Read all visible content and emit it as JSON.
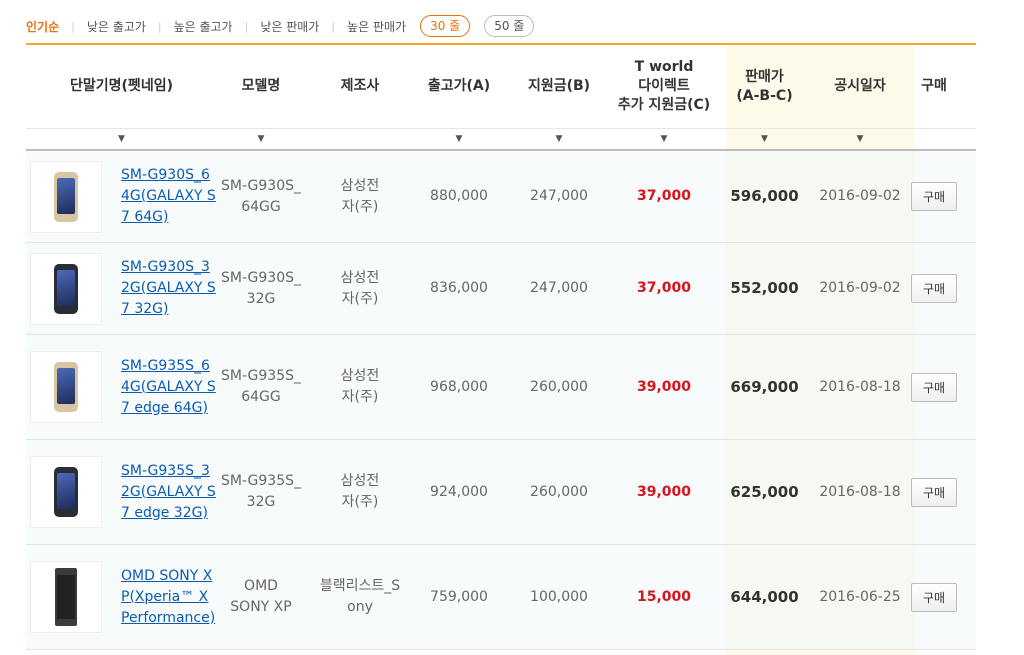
{
  "sort": {
    "options": [
      "인기순",
      "낮은 출고가",
      "높은 출고가",
      "낮은 판매가",
      "높은 판매가"
    ],
    "page_sizes": [
      "30 줄",
      "50 줄"
    ]
  },
  "colors": {
    "accent": "#e8700f",
    "highlight_red": "#d6141e",
    "link": "#0c5bb0",
    "band": "#fdfaea"
  },
  "table": {
    "headers": {
      "name": "단말기명(펫네임)",
      "model": "모델명",
      "maker": "제조사",
      "factory": "출고가(A)",
      "support": "지원금(B)",
      "tworld_1": "T world",
      "tworld_2": "다이렉트",
      "tworld_3": "추가 지원금(C)",
      "sale_1": "판매가",
      "sale_2": "(A-B-C)",
      "date": "공시일자",
      "buy": "구매"
    },
    "sort_arrow": "▼",
    "rows": [
      {
        "name": "SM-G930S_64G(GALAXY S7 64G)",
        "model": "SM-G930S_64GG",
        "maker": "삼성전자(주)",
        "factory": "880,000",
        "support": "247,000",
        "extra": "37,000",
        "sale": "596,000",
        "date": "2016-09-02",
        "buy": "구매",
        "phone_icon": "galaxy-s7-gold"
      },
      {
        "name": "SM-G930S_32G(GALAXY S7 32G)",
        "model": "SM-G930S_32G",
        "maker": "삼성전자(주)",
        "factory": "836,000",
        "support": "247,000",
        "extra": "37,000",
        "sale": "552,000",
        "date": "2016-09-02",
        "buy": "구매",
        "phone_icon": "galaxy-s7-black"
      },
      {
        "name": "SM-G935S_64G(GALAXY S7 edge 64G)",
        "model": "SM-G935S_64GG",
        "maker": "삼성전자(주)",
        "factory": "968,000",
        "support": "260,000",
        "extra": "39,000",
        "sale": "669,000",
        "date": "2016-08-18",
        "buy": "구매",
        "phone_icon": "galaxy-s7-edge-gold"
      },
      {
        "name": "SM-G935S_32G(GALAXY S7 edge 32G)",
        "model": "SM-G935S_32G",
        "maker": "삼성전자(주)",
        "factory": "924,000",
        "support": "260,000",
        "extra": "39,000",
        "sale": "625,000",
        "date": "2016-08-18",
        "buy": "구매",
        "phone_icon": "galaxy-s7-edge-black"
      },
      {
        "name": "OMD SONY XP(Xperia™ X Performance)",
        "model": "OMD SONY XP",
        "maker": "블랙리스트_Sony",
        "factory": "759,000",
        "support": "100,000",
        "extra": "15,000",
        "sale": "644,000",
        "date": "2016-06-25",
        "buy": "구매",
        "phone_icon": "xperia-x"
      }
    ]
  }
}
